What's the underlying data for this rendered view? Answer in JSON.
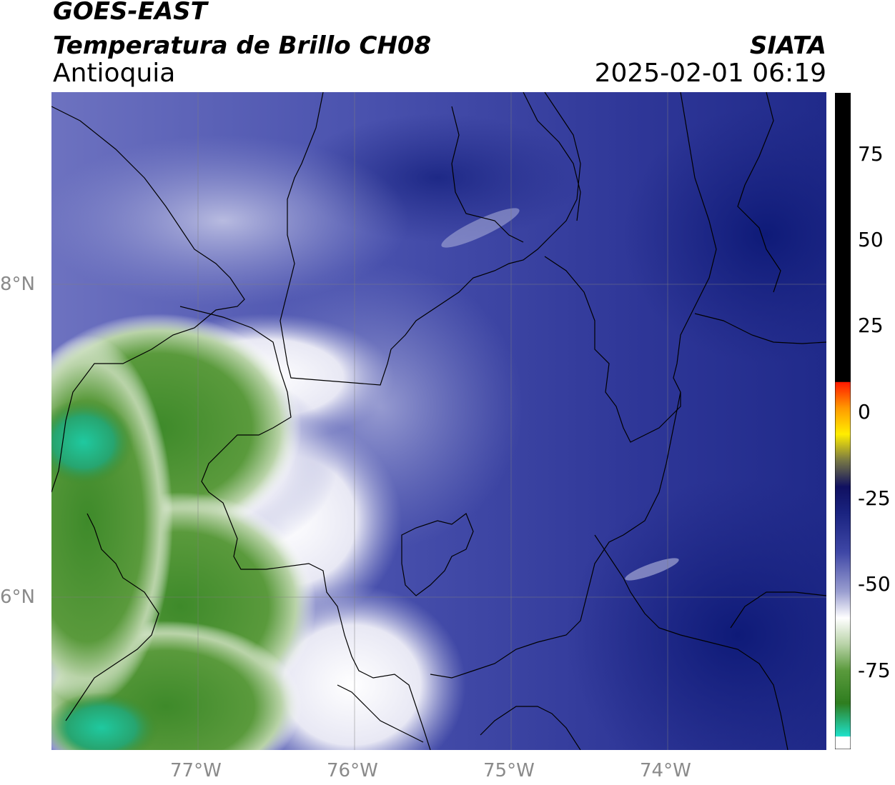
{
  "header": {
    "satellite": "GOES-EAST",
    "product": "Temperatura de Brillo CH08",
    "region": "Antioquia",
    "organization": "SIATA",
    "timestamp": "2025-02-01 06:19"
  },
  "map": {
    "lat_labels": [
      "8°N",
      "6°N"
    ],
    "lon_labels": [
      "77°W",
      "76°W",
      "75°W",
      "74°W"
    ]
  },
  "colorbar": {
    "ticks": [
      "75",
      "50",
      "25",
      "0",
      "-25",
      "-50",
      "-75"
    ],
    "colors": {
      "green_dark": "#2e7d1f",
      "green_mid": "#5a9a3c",
      "teal": "#1fc9a0",
      "white": "#ffffff",
      "lavender": "#9a9ed0",
      "blue_mid": "#3f47a6",
      "navy": "#1a2380",
      "red": "#ff1a00",
      "orange": "#ff9900",
      "yellow": "#ffee00",
      "black": "#000000"
    }
  }
}
